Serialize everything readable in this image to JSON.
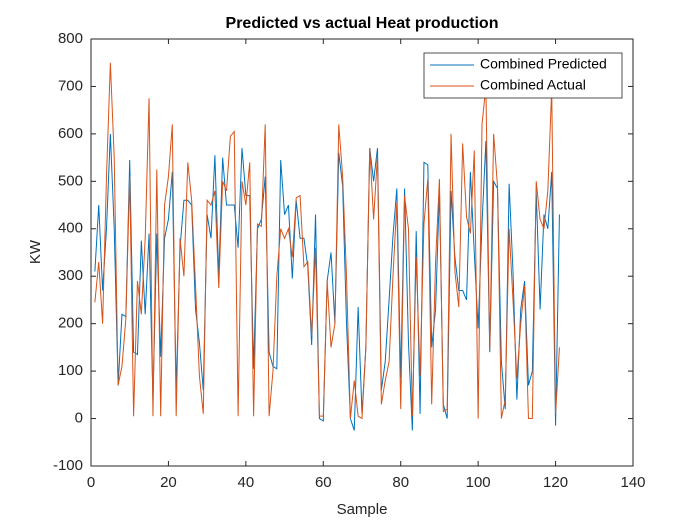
{
  "chart_data": {
    "type": "line",
    "title": "Predicted vs actual Heat production",
    "x_label": "Sample",
    "y_label": "KW",
    "x": [
      1,
      2,
      3,
      4,
      5,
      6,
      7,
      8,
      9,
      10,
      11,
      12,
      13,
      14,
      15,
      16,
      17,
      18,
      19,
      20,
      21,
      22,
      23,
      24,
      25,
      26,
      27,
      28,
      29,
      30,
      31,
      32,
      33,
      34,
      35,
      36,
      37,
      38,
      39,
      40,
      41,
      42,
      43,
      44,
      45,
      46,
      47,
      48,
      49,
      50,
      51,
      52,
      53,
      54,
      55,
      56,
      57,
      58,
      59,
      60,
      61,
      62,
      63,
      64,
      65,
      66,
      67,
      68,
      69,
      70,
      71,
      72,
      73,
      74,
      75,
      76,
      77,
      78,
      79,
      80,
      81,
      82,
      83,
      84,
      85,
      86,
      87,
      88,
      89,
      90,
      91,
      92,
      93,
      94,
      95,
      96,
      97,
      98,
      99,
      100,
      101,
      102,
      103,
      104,
      105,
      106,
      107,
      108,
      109,
      110,
      111,
      112,
      113,
      114,
      115,
      116,
      117,
      118,
      119,
      120,
      121
    ],
    "series": [
      {
        "name": "Combined Predicted",
        "color": "#0072bd",
        "values": [
          310,
          450,
          270,
          400,
          600,
          400,
          70,
          220,
          215,
          545,
          140,
          135,
          375,
          220,
          390,
          40,
          390,
          130,
          380,
          420,
          520,
          60,
          360,
          460,
          460,
          450,
          230,
          160,
          60,
          430,
          380,
          555,
          300,
          550,
          450,
          450,
          450,
          360,
          570,
          470,
          470,
          105,
          400,
          420,
          510,
          140,
          110,
          105,
          545,
          430,
          450,
          295,
          460,
          380,
          380,
          320,
          155,
          430,
          0,
          -5,
          290,
          350,
          200,
          560,
          490,
          200,
          0,
          -25,
          235,
          10,
          150,
          570,
          500,
          570,
          60,
          120,
          250,
          385,
          485,
          85,
          485,
          160,
          -25,
          395,
          10,
          540,
          535,
          150,
          230,
          480,
          30,
          0,
          480,
          340,
          270,
          270,
          250,
          520,
          350,
          190,
          410,
          585,
          140,
          500,
          485,
          120,
          20,
          495,
          310,
          40,
          230,
          290,
          70,
          100,
          480,
          230,
          430,
          400,
          520,
          -15,
          430
        ]
      },
      {
        "name": "Combined Actual",
        "color": "#d95319",
        "values": [
          245,
          330,
          200,
          510,
          750,
          550,
          70,
          110,
          210,
          510,
          5,
          290,
          220,
          380,
          675,
          5,
          525,
          5,
          450,
          510,
          620,
          5,
          380,
          300,
          540,
          460,
          280,
          90,
          10,
          460,
          450,
          480,
          275,
          500,
          480,
          595,
          605,
          5,
          500,
          450,
          540,
          5,
          410,
          405,
          620,
          5,
          100,
          300,
          400,
          380,
          400,
          340,
          465,
          470,
          320,
          330,
          175,
          360,
          5,
          5,
          290,
          150,
          200,
          620,
          510,
          300,
          0,
          80,
          5,
          0,
          150,
          570,
          420,
          555,
          30,
          80,
          120,
          300,
          455,
          20,
          470,
          400,
          5,
          340,
          90,
          410,
          505,
          30,
          330,
          505,
          15,
          20,
          600,
          310,
          235,
          580,
          425,
          390,
          565,
          0,
          620,
          700,
          145,
          600,
          490,
          0,
          40,
          400,
          250,
          85,
          200,
          280,
          0,
          0,
          500,
          420,
          400,
          480,
          695,
          10,
          150
        ]
      }
    ],
    "xlim": [
      0,
      140
    ],
    "xticks": [
      0,
      20,
      40,
      60,
      80,
      100,
      120,
      140
    ],
    "ylim": [
      -100,
      800
    ],
    "yticks": [
      -100,
      0,
      100,
      200,
      300,
      400,
      500,
      600,
      700,
      800
    ],
    "legend": "northeast"
  }
}
